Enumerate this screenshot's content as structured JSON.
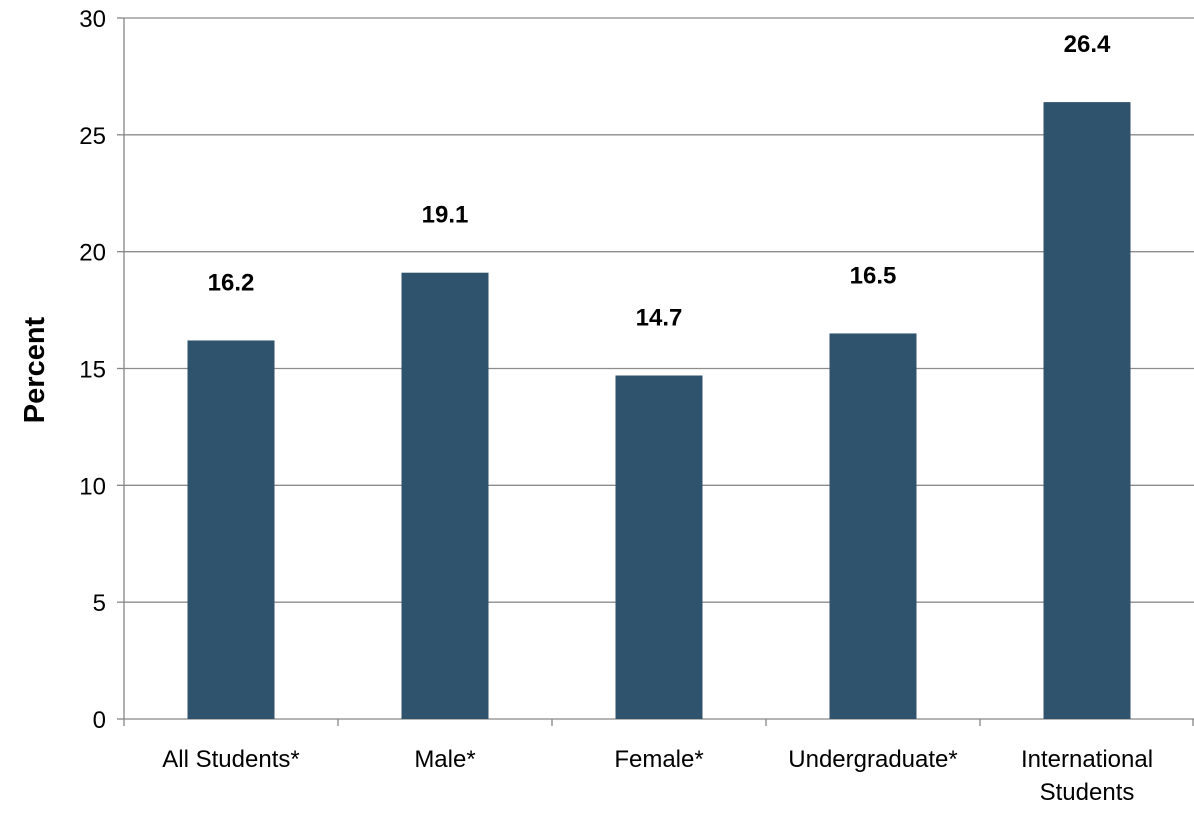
{
  "colors": {
    "bar": "#2f526d",
    "gridline": "#8c8c8c",
    "axis": "#868686",
    "text": "#000000"
  },
  "chart_data": {
    "type": "bar",
    "title": "",
    "xlabel": "",
    "ylabel": "Percent",
    "ylim": [
      0,
      30
    ],
    "yticks": [
      0,
      5,
      10,
      15,
      20,
      25,
      30
    ],
    "grid": true,
    "categories": [
      "All Students*",
      "Male*",
      "Female*",
      "Undergraduate*",
      "International Students"
    ],
    "values": [
      16.2,
      19.1,
      14.7,
      16.5,
      26.4
    ],
    "data_labels": [
      "16.2",
      "19.1",
      "14.7",
      "16.5",
      "26.4"
    ]
  }
}
